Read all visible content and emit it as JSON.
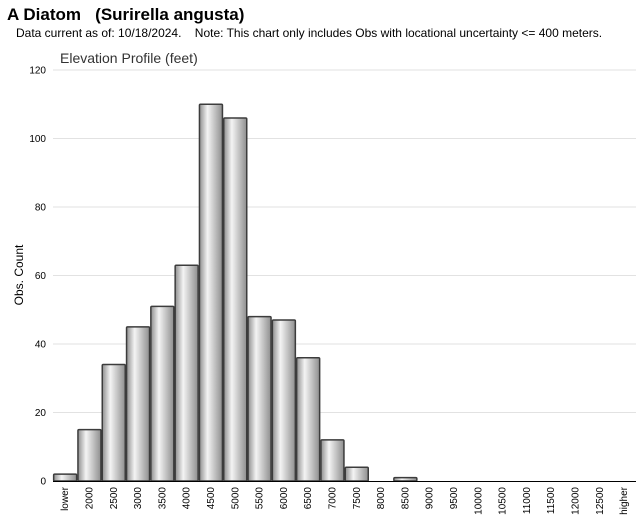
{
  "page": {
    "title": "A Diatom   (Surirella angusta)",
    "subtitle": "Data current as of: 10/18/2024.    Note: This chart only includes Obs with locational uncertainty <= 400 meters."
  },
  "chart_data": {
    "type": "bar",
    "title": "Elevation Profile (feet)",
    "xlabel": "",
    "ylabel": "Obs. Count",
    "ylim": [
      0,
      120
    ],
    "yticks": [
      0,
      20,
      40,
      60,
      80,
      100,
      120
    ],
    "grid": true,
    "legend": "none",
    "categories": [
      "lower",
      "2000",
      "2500",
      "3000",
      "3500",
      "4000",
      "4500",
      "5000",
      "5500",
      "6000",
      "6500",
      "7000",
      "7500",
      "8000",
      "8500",
      "9000",
      "9500",
      "10000",
      "10500",
      "11000",
      "11500",
      "12000",
      "12500",
      "higher"
    ],
    "values": [
      2,
      15,
      34,
      45,
      51,
      63,
      110,
      106,
      48,
      47,
      36,
      12,
      4,
      0,
      1,
      0,
      0,
      0,
      0,
      0,
      0,
      0,
      0,
      0
    ],
    "colors": {
      "bar_edge": "#3c3c3c",
      "bar_light": "#f4f4f4",
      "bar_dark": "#8e8e8e",
      "grid": "#e2e2e2",
      "axis": "#000000"
    }
  }
}
